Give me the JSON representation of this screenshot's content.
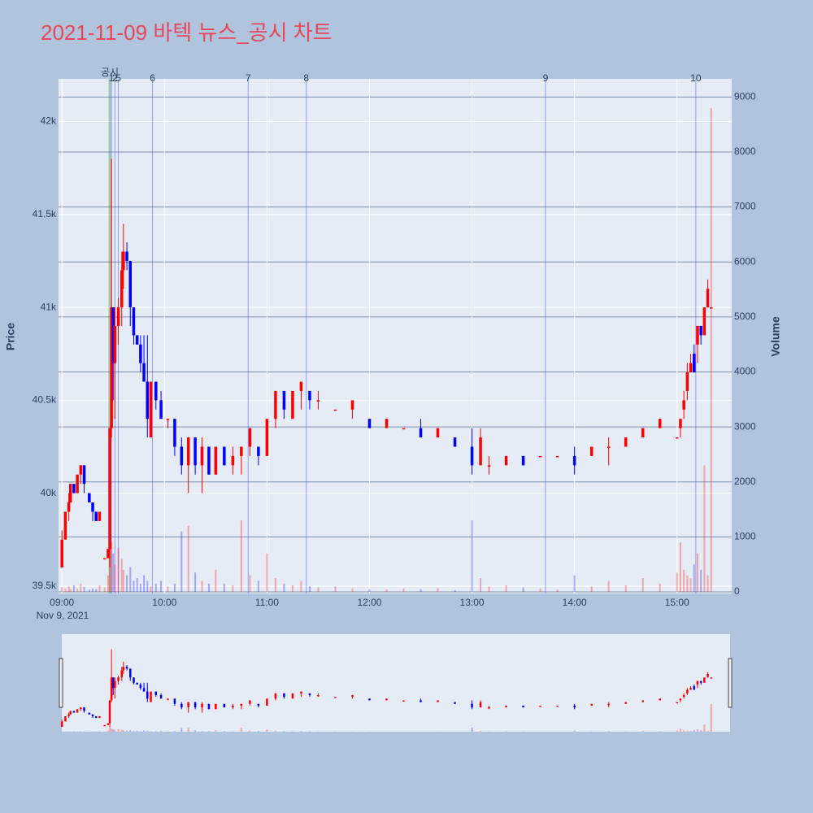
{
  "chart_data": {
    "type": "candlestick",
    "title": "2021-11-09 바텍 뉴스_공시 차트",
    "y_label": "Price",
    "y2_label": "Volume",
    "x_date_label": "Nov 9, 2021",
    "up_color": "#ff0000",
    "down_color": "#0000ff",
    "x": [
      "09:00",
      "09:02",
      "09:04",
      "09:05",
      "09:07",
      "09:09",
      "09:11",
      "09:13",
      "09:16",
      "09:18",
      "09:20",
      "09:22",
      "09:25",
      "09:27",
      "09:28",
      "09:29",
      "09:30",
      "09:31",
      "09:33",
      "09:35",
      "09:36",
      "09:38",
      "09:40",
      "09:42",
      "09:44",
      "09:46",
      "09:48",
      "09:50",
      "09:52",
      "09:55",
      "09:58",
      "10:02",
      "10:06",
      "10:10",
      "10:14",
      "10:18",
      "10:22",
      "10:26",
      "10:30",
      "10:35",
      "10:40",
      "10:45",
      "10:50",
      "10:55",
      "11:00",
      "11:05",
      "11:10",
      "11:15",
      "11:20",
      "11:25",
      "11:30",
      "11:40",
      "11:50",
      "12:00",
      "12:10",
      "12:20",
      "12:30",
      "12:40",
      "12:50",
      "13:00",
      "13:05",
      "13:10",
      "13:20",
      "13:30",
      "13:40",
      "13:50",
      "14:00",
      "14:10",
      "14:20",
      "14:30",
      "14:40",
      "14:50",
      "15:00",
      "15:02",
      "15:04",
      "15:06",
      "15:08",
      "15:10",
      "15:12",
      "15:14",
      "15:16",
      "15:18",
      "15:20"
    ],
    "open": [
      39600,
      39750,
      39900,
      39950,
      40050,
      40000,
      40100,
      40150,
      40000,
      39950,
      39900,
      39850,
      39650,
      39650,
      39700,
      40350,
      41000,
      40700,
      40900,
      41000,
      41200,
      41300,
      41250,
      41000,
      40850,
      40800,
      40700,
      40600,
      40300,
      40600,
      40500,
      40400,
      40400,
      40250,
      40150,
      40300,
      40150,
      40250,
      40100,
      40250,
      40150,
      40200,
      40250,
      40250,
      40200,
      40400,
      40550,
      40400,
      40550,
      40550,
      40500,
      40450,
      40450,
      40400,
      40350,
      40350,
      40350,
      40300,
      40300,
      40250,
      40150,
      40150,
      40150,
      40200,
      40200,
      40200,
      40200,
      40200,
      40250,
      40250,
      40300,
      40350,
      40300,
      40350,
      40450,
      40550,
      40650,
      40750,
      40800,
      40900,
      40850,
      41000,
      41000
    ],
    "high": [
      39800,
      39900,
      40000,
      40050,
      40050,
      40100,
      40150,
      40150,
      40000,
      39950,
      39900,
      39900,
      39650,
      39700,
      40350,
      41800,
      41000,
      41000,
      41050,
      41300,
      41450,
      41350,
      41250,
      41000,
      40850,
      40850,
      40850,
      40850,
      40600,
      40600,
      40550,
      40400,
      40400,
      40300,
      40300,
      40300,
      40300,
      40250,
      40250,
      40250,
      40250,
      40250,
      40350,
      40250,
      40400,
      40550,
      40550,
      40550,
      40600,
      40550,
      40550,
      40450,
      40500,
      40400,
      40400,
      40350,
      40400,
      40350,
      40300,
      40350,
      40350,
      40200,
      40200,
      40200,
      40200,
      40200,
      40250,
      40250,
      40300,
      40300,
      40350,
      40400,
      40300,
      40400,
      40550,
      40700,
      40750,
      40800,
      40900,
      40900,
      41000,
      41150,
      41000
    ],
    "low": [
      39600,
      39750,
      39850,
      39950,
      40000,
      40000,
      40050,
      40000,
      39950,
      39850,
      39850,
      39850,
      39650,
      39650,
      39600,
      40300,
      40500,
      40400,
      40800,
      40900,
      41100,
      41200,
      40900,
      40800,
      40800,
      40650,
      40600,
      40300,
      40300,
      40450,
      40400,
      40350,
      40200,
      40100,
      40000,
      40100,
      40000,
      40100,
      40100,
      40150,
      40100,
      40100,
      40200,
      40150,
      40200,
      40350,
      40400,
      40400,
      40450,
      40450,
      40450,
      40450,
      40400,
      40350,
      40350,
      40350,
      40300,
      40300,
      40250,
      40100,
      40150,
      40100,
      40150,
      40150,
      40200,
      40200,
      40100,
      40200,
      40150,
      40250,
      40300,
      40350,
      40300,
      40300,
      40400,
      40500,
      40650,
      40650,
      40700,
      40800,
      40850,
      41000,
      41000
    ],
    "close": [
      39750,
      39900,
      39950,
      40050,
      40000,
      40100,
      40150,
      40050,
      39950,
      39900,
      39850,
      39900,
      39650,
      39700,
      40350,
      41000,
      40700,
      40900,
      41000,
      41200,
      41300,
      41250,
      41000,
      40850,
      40800,
      40700,
      40600,
      40400,
      40600,
      40500,
      40400,
      40400,
      40250,
      40150,
      40300,
      40150,
      40250,
      40100,
      40250,
      40150,
      40200,
      40250,
      40350,
      40200,
      40400,
      40550,
      40450,
      40550,
      40600,
      40500,
      40500,
      40450,
      40500,
      40350,
      40400,
      40350,
      40300,
      40350,
      40250,
      40150,
      40300,
      40150,
      40200,
      40150,
      40200,
      40200,
      40150,
      40250,
      40250,
      40300,
      40350,
      40400,
      40300,
      40400,
      40500,
      40650,
      40700,
      40650,
      40900,
      40850,
      41000,
      41100,
      41000
    ],
    "volume": [
      80,
      60,
      100,
      50,
      120,
      60,
      150,
      90,
      40,
      60,
      50,
      120,
      80,
      300,
      1500,
      900,
      700,
      500,
      800,
      600,
      400,
      300,
      450,
      200,
      250,
      150,
      300,
      200,
      100,
      150,
      200,
      100,
      150,
      1100,
      1200,
      350,
      200,
      150,
      400,
      150,
      120,
      1300,
      300,
      200,
      700,
      250,
      150,
      120,
      200,
      100,
      80,
      100,
      60,
      50,
      40,
      60,
      50,
      70,
      30,
      1300,
      250,
      100,
      120,
      80,
      60,
      40,
      300,
      100,
      200,
      120,
      250,
      150,
      350,
      900,
      400,
      300,
      250,
      500,
      700,
      400,
      2300,
      300,
      8800
    ],
    "xlim": [
      "08:58",
      "15:32"
    ],
    "xticks": [
      "09:00",
      "10:00",
      "11:00",
      "12:00",
      "13:00",
      "14:00",
      "15:00"
    ],
    "ylim": [
      39460,
      42230
    ],
    "yticks": [
      {
        "value": 39500,
        "label": "39.5k"
      },
      {
        "value": 40000,
        "label": "40k"
      },
      {
        "value": 40500,
        "label": "40.5k"
      },
      {
        "value": 41000,
        "label": "41k"
      },
      {
        "value": 41500,
        "label": "41.5k"
      },
      {
        "value": 42000,
        "label": "42k"
      }
    ],
    "y2lim": [
      -30,
      9330
    ],
    "y2ticks": [
      0,
      1000,
      2000,
      3000,
      4000,
      5000,
      6000,
      7000,
      8000,
      9000
    ],
    "news": [
      {
        "time": "09:29",
        "label": "1"
      },
      {
        "time": "09:31",
        "label": "2"
      },
      {
        "time": "09:33",
        "label": "5"
      },
      {
        "time": "09:53",
        "label": "6"
      },
      {
        "time": "10:49",
        "label": "7"
      },
      {
        "time": "11:23",
        "label": "8"
      },
      {
        "time": "13:43",
        "label": "9"
      },
      {
        "time": "15:11",
        "label": "10"
      }
    ],
    "disclosure": {
      "time": "09:28",
      "label": "공시"
    },
    "grid": true
  }
}
